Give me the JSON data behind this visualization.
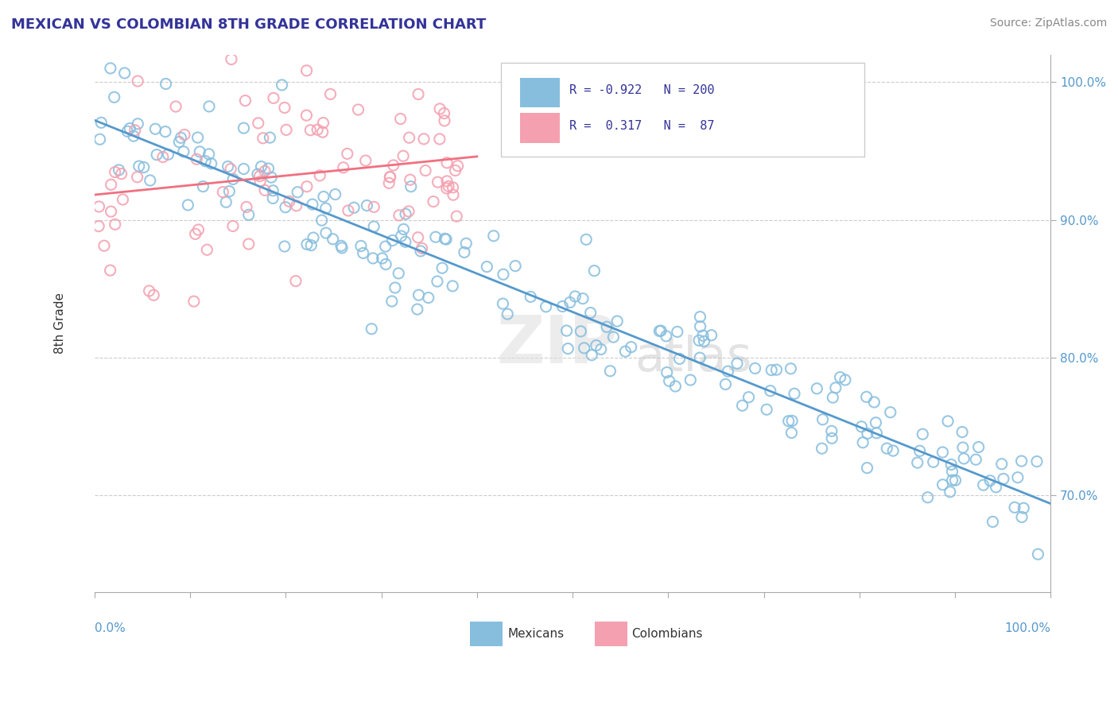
{
  "title": "MEXICAN VS COLOMBIAN 8TH GRADE CORRELATION CHART",
  "source": "Source: ZipAtlas.com",
  "ylabel": "8th Grade",
  "x_min": 0.0,
  "x_max": 1.0,
  "y_min": 0.63,
  "y_max": 1.02,
  "blue_R": -0.922,
  "blue_N": 200,
  "pink_R": 0.317,
  "pink_N": 87,
  "blue_color": "#87BEDE",
  "pink_color": "#F4A0B0",
  "blue_line_color": "#5599CC",
  "pink_line_color": "#F07080",
  "ytick_labels": [
    "70.0%",
    "80.0%",
    "90.0%",
    "100.0%"
  ],
  "ytick_values": [
    0.7,
    0.8,
    0.9,
    1.0
  ],
  "background_color": "#FFFFFF",
  "grid_color": "#CCCCCC"
}
